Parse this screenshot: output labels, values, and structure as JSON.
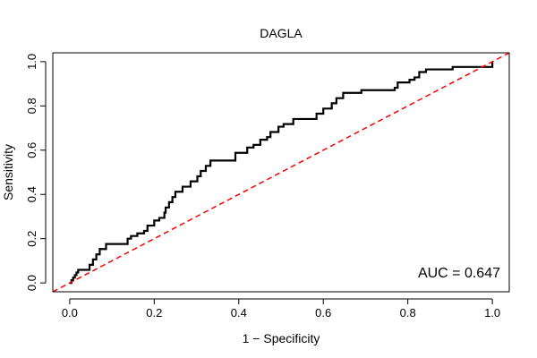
{
  "chart_data": {
    "type": "line",
    "title": "DAGLA",
    "xlabel": "1 − Specificity",
    "ylabel": "Sensitivity",
    "xlim": [
      -0.04,
      1.04
    ],
    "ylim": [
      -0.04,
      1.04
    ],
    "xticks": [
      "0.0",
      "0.2",
      "0.4",
      "0.6",
      "0.8",
      "1.0"
    ],
    "yticks": [
      "0.0",
      "0.2",
      "0.4",
      "0.6",
      "0.8",
      "1.0"
    ],
    "grid": false,
    "annotation": "AUC = 0.647",
    "series": [
      {
        "color": "#000000",
        "style": "solid",
        "step": true,
        "x": [
          0.0,
          0.004,
          0.008,
          0.012,
          0.016,
          0.02,
          0.047,
          0.055,
          0.063,
          0.071,
          0.086,
          0.137,
          0.145,
          0.16,
          0.176,
          0.184,
          0.2,
          0.212,
          0.224,
          0.227,
          0.235,
          0.243,
          0.25,
          0.267,
          0.286,
          0.302,
          0.31,
          0.322,
          0.333,
          0.392,
          0.42,
          0.435,
          0.451,
          0.467,
          0.475,
          0.494,
          0.506,
          0.529,
          0.584,
          0.6,
          0.62,
          0.631,
          0.647,
          0.69,
          0.769,
          0.776,
          0.804,
          0.816,
          0.827,
          0.843,
          0.906,
          1.0
        ],
        "y": [
          0.0,
          0.012,
          0.024,
          0.035,
          0.047,
          0.059,
          0.082,
          0.106,
          0.129,
          0.153,
          0.176,
          0.2,
          0.212,
          0.224,
          0.235,
          0.259,
          0.282,
          0.294,
          0.318,
          0.341,
          0.365,
          0.388,
          0.412,
          0.435,
          0.459,
          0.482,
          0.506,
          0.529,
          0.553,
          0.588,
          0.612,
          0.624,
          0.647,
          0.659,
          0.682,
          0.706,
          0.718,
          0.741,
          0.765,
          0.788,
          0.812,
          0.835,
          0.859,
          0.871,
          0.882,
          0.906,
          0.918,
          0.929,
          0.953,
          0.965,
          0.976,
          1.0
        ]
      },
      {
        "color": "#ff0000",
        "style": "dashed",
        "step": false,
        "x": [
          -0.04,
          1.04
        ],
        "y": [
          -0.04,
          1.04
        ]
      }
    ]
  }
}
